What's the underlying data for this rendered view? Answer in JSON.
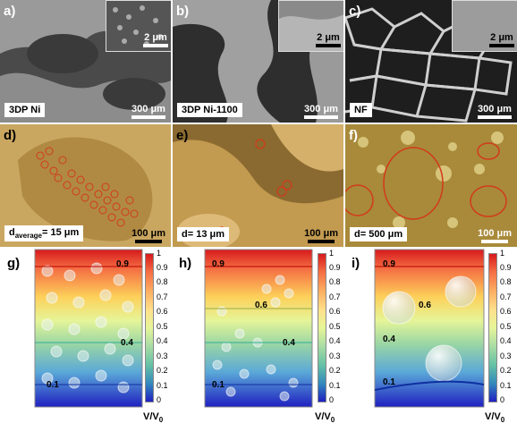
{
  "panels": {
    "a": {
      "label": "a)",
      "tag": "3DP Ni",
      "scale": "300 μm",
      "inset_scale": "2 μm"
    },
    "b": {
      "label": "b)",
      "tag": "3DP Ni-1100",
      "scale": "300 μm",
      "inset_scale": "2 μm"
    },
    "c": {
      "label": "c)",
      "tag": "NF",
      "scale": "300 μm",
      "inset_scale": "2 μm"
    },
    "d": {
      "label": "d)",
      "tag_main": "d",
      "tag_sub": "average",
      "tag_rest": "= 15 μm",
      "scale": "100 μm"
    },
    "e": {
      "label": "e)",
      "tag": "d= 13 μm",
      "scale": "100 μm"
    },
    "f": {
      "label": "f)",
      "tag": "d= 500 μm",
      "scale": "100 μm"
    },
    "g": {
      "label": "g)",
      "levels": [
        "0.9",
        "0.4",
        "0.1"
      ]
    },
    "h": {
      "label": "h)",
      "levels": [
        "0.9",
        "0.6",
        "0.4",
        "0.1"
      ]
    },
    "i": {
      "label": "i)",
      "levels": [
        "0.9",
        "0.6",
        "0.4",
        "0.1"
      ]
    }
  },
  "colorbar": {
    "ticks": [
      "1",
      "0.9",
      "0.8",
      "0.7",
      "0.6",
      "0.5",
      "0.4",
      "0.3",
      "0.2",
      "0.1",
      "0"
    ],
    "unit_main": "V/V",
    "unit_sub": "0"
  },
  "colors": {
    "circle": "#d23a1a",
    "sem_light": "#d8d8d8",
    "sem_dark": "#3a3a3a",
    "optic": "#b48a3c"
  }
}
